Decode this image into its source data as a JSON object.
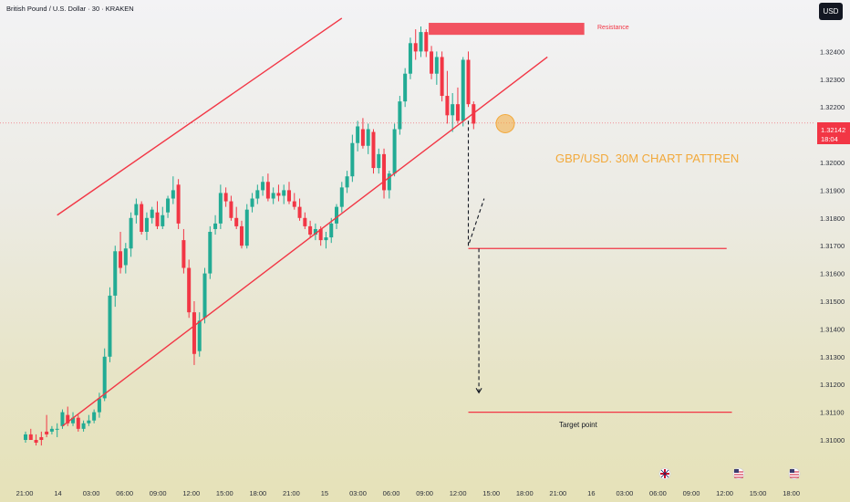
{
  "header": {
    "title": "British Pound / U.S. Dollar · 30 · KRAKEN",
    "currency": "USD"
  },
  "price_label": {
    "price": "1.32142",
    "countdown": "18:04"
  },
  "annotations": {
    "resistance": "Resistance",
    "headline": "GBP/USD. 30M CHART PATTREN",
    "target": "Target point"
  },
  "colors": {
    "up": "#22ab94",
    "down": "#f23645",
    "line": "#f23645",
    "headline": "#f2a93b",
    "axis_text": "#2a2e39"
  },
  "event_icons": [
    "flag-uk-icon",
    "flag-us-icon",
    "flag-us-icon"
  ],
  "chart_data": {
    "type": "candlestick",
    "title": "British Pound / U.S. Dollar · 30 · KRAKEN",
    "y_ticks": [
      "1.32400",
      "1.32300",
      "1.32200",
      "1.32000",
      "1.31900",
      "1.31800",
      "1.31700",
      "1.31600",
      "1.31500",
      "1.31400",
      "1.31300",
      "1.31200",
      "1.31100",
      "1.31000"
    ],
    "x_ticks": [
      "21:00",
      "14",
      "03:00",
      "06:00",
      "09:00",
      "12:00",
      "15:00",
      "18:00",
      "21:00",
      "15",
      "03:00",
      "06:00",
      "09:00",
      "12:00",
      "15:00",
      "18:00",
      "21:00",
      "16",
      "03:00",
      "06:00",
      "09:00",
      "12:00",
      "15:00",
      "18:00"
    ],
    "current_price": 1.32142,
    "ylim": [
      1.31,
      1.325
    ],
    "candles": [
      [
        1.31,
        1.3103,
        1.3099,
        1.3102
      ],
      [
        1.3102,
        1.3104,
        1.31,
        1.31
      ],
      [
        1.31,
        1.3102,
        1.3098,
        1.3099
      ],
      [
        1.3101,
        1.3103,
        1.3098,
        1.31
      ],
      [
        1.3103,
        1.3109,
        1.3101,
        1.3102
      ],
      [
        1.3103,
        1.3105,
        1.3102,
        1.3104
      ],
      [
        1.3104,
        1.3106,
        1.3101,
        1.3104
      ],
      [
        1.3105,
        1.3111,
        1.3104,
        1.311
      ],
      [
        1.3109,
        1.3112,
        1.3105,
        1.3106
      ],
      [
        1.3106,
        1.311,
        1.3105,
        1.3108
      ],
      [
        1.3108,
        1.3109,
        1.3103,
        1.3104
      ],
      [
        1.3104,
        1.3107,
        1.3103,
        1.3106
      ],
      [
        1.3106,
        1.3109,
        1.3105,
        1.3107
      ],
      [
        1.3107,
        1.3111,
        1.3106,
        1.311
      ],
      [
        1.311,
        1.3117,
        1.3108,
        1.3115
      ],
      [
        1.3115,
        1.3133,
        1.3114,
        1.313
      ],
      [
        1.313,
        1.3155,
        1.3128,
        1.3152
      ],
      [
        1.3152,
        1.317,
        1.3148,
        1.3168
      ],
      [
        1.3168,
        1.3175,
        1.316,
        1.3162
      ],
      [
        1.3163,
        1.3171,
        1.316,
        1.3169
      ],
      [
        1.3169,
        1.3182,
        1.3166,
        1.318
      ],
      [
        1.3181,
        1.3187,
        1.3178,
        1.3185
      ],
      [
        1.3185,
        1.3186,
        1.3174,
        1.3175
      ],
      [
        1.3175,
        1.3182,
        1.3172,
        1.318
      ],
      [
        1.318,
        1.3184,
        1.3178,
        1.3183
      ],
      [
        1.3182,
        1.3186,
        1.3176,
        1.3177
      ],
      [
        1.3177,
        1.3184,
        1.3176,
        1.3181
      ],
      [
        1.3182,
        1.3188,
        1.318,
        1.3187
      ],
      [
        1.3187,
        1.3195,
        1.3185,
        1.319
      ],
      [
        1.3192,
        1.3194,
        1.3176,
        1.3178
      ],
      [
        1.3172,
        1.3176,
        1.316,
        1.3162
      ],
      [
        1.3162,
        1.3165,
        1.3144,
        1.3146
      ],
      [
        1.3146,
        1.315,
        1.3127,
        1.3131
      ],
      [
        1.3132,
        1.3146,
        1.313,
        1.3143
      ],
      [
        1.3144,
        1.3162,
        1.3142,
        1.316
      ],
      [
        1.316,
        1.3177,
        1.3158,
        1.3175
      ],
      [
        1.3176,
        1.3181,
        1.3174,
        1.3178
      ],
      [
        1.3178,
        1.3192,
        1.3176,
        1.3189
      ],
      [
        1.3189,
        1.3191,
        1.3184,
        1.3186
      ],
      [
        1.3186,
        1.3188,
        1.3179,
        1.318
      ],
      [
        1.318,
        1.3184,
        1.3176,
        1.3177
      ],
      [
        1.3177,
        1.3179,
        1.3169,
        1.317
      ],
      [
        1.317,
        1.3185,
        1.3169,
        1.3183
      ],
      [
        1.3184,
        1.3189,
        1.3182,
        1.3187
      ],
      [
        1.3187,
        1.3192,
        1.3185,
        1.319
      ],
      [
        1.319,
        1.3195,
        1.3188,
        1.3193
      ],
      [
        1.3193,
        1.3196,
        1.3186,
        1.3187
      ],
      [
        1.3187,
        1.3191,
        1.3185,
        1.3189
      ],
      [
        1.3189,
        1.3192,
        1.3186,
        1.3188
      ],
      [
        1.3188,
        1.3192,
        1.3185,
        1.319
      ],
      [
        1.319,
        1.3193,
        1.3185,
        1.3186
      ],
      [
        1.3186,
        1.3189,
        1.3183,
        1.3184
      ],
      [
        1.3184,
        1.3187,
        1.3179,
        1.318
      ],
      [
        1.318,
        1.3182,
        1.3176,
        1.3177
      ],
      [
        1.3177,
        1.3179,
        1.3173,
        1.3174
      ],
      [
        1.3174,
        1.3178,
        1.3172,
        1.3176
      ],
      [
        1.3176,
        1.3177,
        1.317,
        1.3172
      ],
      [
        1.3172,
        1.3175,
        1.3169,
        1.3173
      ],
      [
        1.3173,
        1.318,
        1.3171,
        1.3178
      ],
      [
        1.3178,
        1.3185,
        1.3176,
        1.3184
      ],
      [
        1.3184,
        1.3193,
        1.3182,
        1.3191
      ],
      [
        1.3191,
        1.3197,
        1.3189,
        1.3195
      ],
      [
        1.3195,
        1.321,
        1.3193,
        1.3207
      ],
      [
        1.3207,
        1.3215,
        1.3204,
        1.3213
      ],
      [
        1.3212,
        1.3216,
        1.3205,
        1.3206
      ],
      [
        1.3206,
        1.3214,
        1.3203,
        1.3212
      ],
      [
        1.3211,
        1.3212,
        1.3196,
        1.3198
      ],
      [
        1.3198,
        1.3205,
        1.3196,
        1.3203
      ],
      [
        1.3203,
        1.3205,
        1.3187,
        1.319
      ],
      [
        1.319,
        1.3197,
        1.3187,
        1.3196
      ],
      [
        1.3196,
        1.3214,
        1.3195,
        1.3212
      ],
      [
        1.3212,
        1.3224,
        1.321,
        1.3222
      ],
      [
        1.3222,
        1.3234,
        1.322,
        1.3232
      ],
      [
        1.3232,
        1.3245,
        1.323,
        1.3243
      ],
      [
        1.3243,
        1.3248,
        1.3237,
        1.324
      ],
      [
        1.324,
        1.3249,
        1.3238,
        1.3247
      ],
      [
        1.3247,
        1.3248,
        1.3238,
        1.324
      ],
      [
        1.324,
        1.3242,
        1.323,
        1.3232
      ],
      [
        1.3232,
        1.324,
        1.3228,
        1.3238
      ],
      [
        1.3238,
        1.324,
        1.3222,
        1.3224
      ],
      [
        1.3224,
        1.3233,
        1.3214,
        1.3217
      ],
      [
        1.3217,
        1.3225,
        1.3211,
        1.3221
      ],
      [
        1.3221,
        1.3227,
        1.3214,
        1.3215
      ],
      [
        1.3215,
        1.3238,
        1.3213,
        1.3237
      ],
      [
        1.3237,
        1.324,
        1.322,
        1.3221
      ],
      [
        1.3221,
        1.3222,
        1.3212,
        1.3214
      ]
    ],
    "trendlines": [
      {
        "name": "upper channel",
        "from": {
          "bar": 6,
          "price": 1.3181
        },
        "to": {
          "bar": 60,
          "price": 1.3252
        }
      },
      {
        "name": "lower channel",
        "from": {
          "bar": 7,
          "price": 1.3105
        },
        "to": {
          "bar": 99,
          "price": 1.3238
        }
      }
    ],
    "resistance_zone": {
      "from": 1.3246,
      "to": 1.3249
    },
    "levels": [
      1.3169,
      1.311
    ],
    "projection_path": [
      {
        "bar": 84,
        "price": 1.3215
      },
      {
        "bar": 84,
        "price": 1.317
      },
      {
        "bar": 87,
        "price": 1.3187
      }
    ],
    "target_arrow": [
      {
        "bar": 86,
        "price": 1.3169
      },
      {
        "bar": 86,
        "price": 1.3117
      }
    ]
  }
}
